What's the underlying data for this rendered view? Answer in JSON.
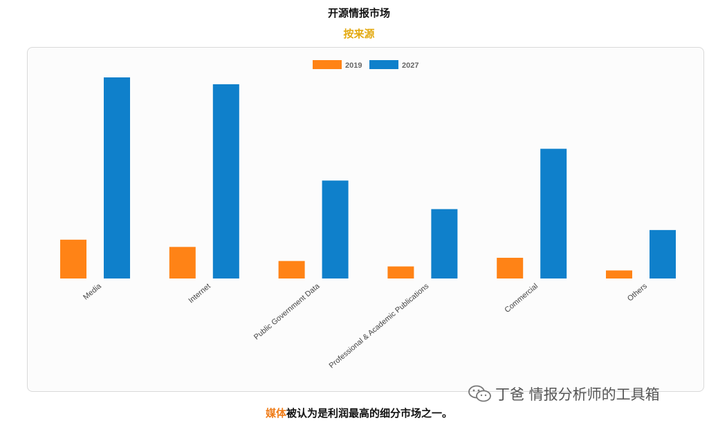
{
  "header": {
    "title": "开源情报市场",
    "subtitle": "按来源"
  },
  "caption": {
    "highlight": "媒体",
    "rest": "被认为是利润最高的细分市场之一。"
  },
  "watermark": {
    "text": "丁爸 情报分析师的工具箱",
    "icon": "wechat-icon"
  },
  "chart_data": {
    "type": "bar",
    "categories": [
      "Media",
      "Internet",
      "Public Government Data",
      "Professional & Academic Publications",
      "Commercial",
      "Others"
    ],
    "series": [
      {
        "name": "2019",
        "color": "#ff8316",
        "values": [
          19.3,
          15.7,
          8.7,
          6.0,
          10.3,
          4.0
        ]
      },
      {
        "name": "2027",
        "color": "#0f80cb",
        "values": [
          100,
          96.6,
          48.7,
          34.5,
          64.5,
          24.1
        ]
      }
    ],
    "title": "",
    "xlabel": "",
    "ylabel": "",
    "ylim": [
      0,
      100
    ],
    "legend": "top-center",
    "grid": false
  }
}
